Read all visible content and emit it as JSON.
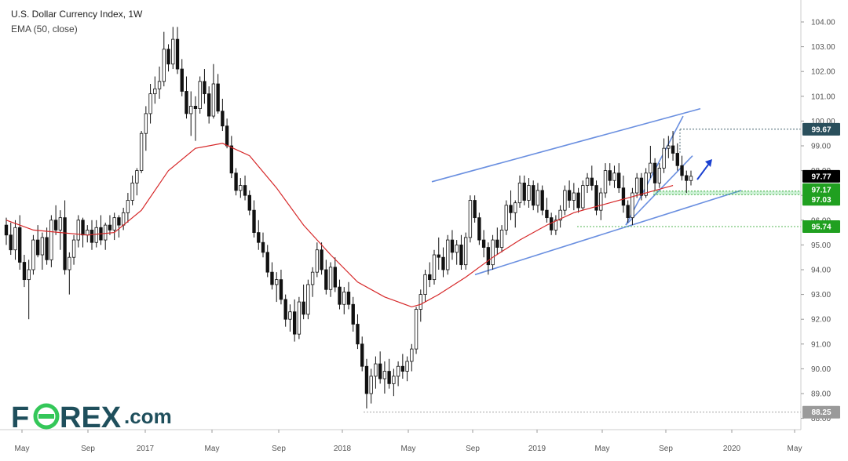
{
  "chart_data": {
    "type": "candlestick",
    "title": "U.S. Dollar Currency Index, 1W",
    "indicator": "EMA (50, close)",
    "ylim": [
      87.6,
      104.5
    ],
    "y_ticks": [
      88,
      89,
      90,
      91,
      92,
      93,
      94,
      95,
      96,
      97,
      98,
      99,
      100,
      101,
      102,
      103,
      104
    ],
    "x_ticks": [
      "May",
      "Sep",
      "2017",
      "May",
      "Sep",
      "2018",
      "May",
      "Sep",
      "2019",
      "May",
      "Sep",
      "2020",
      "May"
    ],
    "ohlc_weekly": [
      [
        95.8,
        96.1,
        95.0,
        95.4
      ],
      [
        95.4,
        95.9,
        94.6,
        94.8
      ],
      [
        94.8,
        96.0,
        94.4,
        95.7
      ],
      [
        95.7,
        96.2,
        94.0,
        94.3
      ],
      [
        94.3,
        94.6,
        93.3,
        93.6
      ],
      [
        93.6,
        94.4,
        92.0,
        94.0
      ],
      [
        94.0,
        95.4,
        93.8,
        95.2
      ],
      [
        95.2,
        95.8,
        94.5,
        94.6
      ],
      [
        94.6,
        95.5,
        94.0,
        95.3
      ],
      [
        95.3,
        95.7,
        94.2,
        94.4
      ],
      [
        94.4,
        96.2,
        94.1,
        96.0
      ],
      [
        96.0,
        96.6,
        95.4,
        95.6
      ],
      [
        95.6,
        96.4,
        94.8,
        96.1
      ],
      [
        96.1,
        96.8,
        93.8,
        94.0
      ],
      [
        94.0,
        94.7,
        93.0,
        94.5
      ],
      [
        94.5,
        95.4,
        94.2,
        95.2
      ],
      [
        95.2,
        96.2,
        94.9,
        96.0
      ],
      [
        96.0,
        96.1,
        94.9,
        95.4
      ],
      [
        95.4,
        95.8,
        95.1,
        95.6
      ],
      [
        95.6,
        96.0,
        94.8,
        95.1
      ],
      [
        95.1,
        96.0,
        94.9,
        95.7
      ],
      [
        95.7,
        96.2,
        95.0,
        95.2
      ],
      [
        95.2,
        95.9,
        94.8,
        95.8
      ],
      [
        95.8,
        96.2,
        95.4,
        95.6
      ],
      [
        95.6,
        96.3,
        95.2,
        96.1
      ],
      [
        96.1,
        96.2,
        95.3,
        95.8
      ],
      [
        95.8,
        96.5,
        95.6,
        96.3
      ],
      [
        96.3,
        97.1,
        95.9,
        96.8
      ],
      [
        96.8,
        97.8,
        96.6,
        97.5
      ],
      [
        97.5,
        98.1,
        97.0,
        98.0
      ],
      [
        98.0,
        99.6,
        97.9,
        99.5
      ],
      [
        99.5,
        100.6,
        98.8,
        100.3
      ],
      [
        100.3,
        101.5,
        99.9,
        101.1
      ],
      [
        101.1,
        101.8,
        100.7,
        101.3
      ],
      [
        101.3,
        102.2,
        100.9,
        101.6
      ],
      [
        101.6,
        103.6,
        101.4,
        102.9
      ],
      [
        102.9,
        103.1,
        102.0,
        102.3
      ],
      [
        102.3,
        103.8,
        102.1,
        103.3
      ],
      [
        103.3,
        103.8,
        101.9,
        102.1
      ],
      [
        102.1,
        102.5,
        101.0,
        101.2
      ],
      [
        101.2,
        101.8,
        100.1,
        100.3
      ],
      [
        100.3,
        101.2,
        99.4,
        100.6
      ],
      [
        100.6,
        101.0,
        99.2,
        100.5
      ],
      [
        100.5,
        101.8,
        100.3,
        101.6
      ],
      [
        101.6,
        102.1,
        100.7,
        101.1
      ],
      [
        101.1,
        101.4,
        99.9,
        100.2
      ],
      [
        100.2,
        102.3,
        100.1,
        101.5
      ],
      [
        101.5,
        101.9,
        100.3,
        100.4
      ],
      [
        100.4,
        100.9,
        99.6,
        99.8
      ],
      [
        99.8,
        100.1,
        98.9,
        99.0
      ],
      [
        99.0,
        99.4,
        97.7,
        97.9
      ],
      [
        97.9,
        98.1,
        97.0,
        97.2
      ],
      [
        97.2,
        97.7,
        96.9,
        97.4
      ],
      [
        97.4,
        97.8,
        96.8,
        97.0
      ],
      [
        97.0,
        97.2,
        96.2,
        96.4
      ],
      [
        96.4,
        96.8,
        95.3,
        95.5
      ],
      [
        95.5,
        96.0,
        94.8,
        95.1
      ],
      [
        95.1,
        95.5,
        94.5,
        94.7
      ],
      [
        94.7,
        95.0,
        93.7,
        93.9
      ],
      [
        93.9,
        94.3,
        93.2,
        93.4
      ],
      [
        93.4,
        93.9,
        92.7,
        93.6
      ],
      [
        93.6,
        94.0,
        92.6,
        92.8
      ],
      [
        92.8,
        93.0,
        91.7,
        92.0
      ],
      [
        92.0,
        92.6,
        91.5,
        92.3
      ],
      [
        92.3,
        92.8,
        91.1,
        91.4
      ],
      [
        91.4,
        92.9,
        91.2,
        92.7
      ],
      [
        92.7,
        93.4,
        92.0,
        92.2
      ],
      [
        92.2,
        93.6,
        92.0,
        93.4
      ],
      [
        93.4,
        94.1,
        92.9,
        93.9
      ],
      [
        93.9,
        95.1,
        93.7,
        94.8
      ],
      [
        94.8,
        95.1,
        93.8,
        94.0
      ],
      [
        94.0,
        94.4,
        93.0,
        93.2
      ],
      [
        93.2,
        94.3,
        92.9,
        94.1
      ],
      [
        94.1,
        94.5,
        93.1,
        93.3
      ],
      [
        93.3,
        93.6,
        92.4,
        92.6
      ],
      [
        92.6,
        93.3,
        92.2,
        93.1
      ],
      [
        93.1,
        93.5,
        92.4,
        92.6
      ],
      [
        92.6,
        92.9,
        91.5,
        91.8
      ],
      [
        91.8,
        92.2,
        90.8,
        91.0
      ],
      [
        91.0,
        91.3,
        89.9,
        90.1
      ],
      [
        90.1,
        90.4,
        88.4,
        89.0
      ],
      [
        89.0,
        90.0,
        88.6,
        89.7
      ],
      [
        89.7,
        90.5,
        89.2,
        90.2
      ],
      [
        90.2,
        90.7,
        89.4,
        89.6
      ],
      [
        89.6,
        90.3,
        89.0,
        89.9
      ],
      [
        89.9,
        90.4,
        89.2,
        89.4
      ],
      [
        89.4,
        90.0,
        88.9,
        89.7
      ],
      [
        89.7,
        90.3,
        89.3,
        90.1
      ],
      [
        90.1,
        90.6,
        89.6,
        89.9
      ],
      [
        89.9,
        90.5,
        89.5,
        90.3
      ],
      [
        90.3,
        91.0,
        89.9,
        90.8
      ],
      [
        90.8,
        92.5,
        90.6,
        92.4
      ],
      [
        92.4,
        93.2,
        91.9,
        93.0
      ],
      [
        93.0,
        94.0,
        92.7,
        93.8
      ],
      [
        93.8,
        94.3,
        93.3,
        93.6
      ],
      [
        93.6,
        94.8,
        93.4,
        94.6
      ],
      [
        94.6,
        95.3,
        94.0,
        94.5
      ],
      [
        94.5,
        94.9,
        93.7,
        94.0
      ],
      [
        94.0,
        95.4,
        93.8,
        95.2
      ],
      [
        95.2,
        95.6,
        94.4,
        94.7
      ],
      [
        94.7,
        95.2,
        94.2,
        95.0
      ],
      [
        95.0,
        95.4,
        94.0,
        94.2
      ],
      [
        94.2,
        95.5,
        94.0,
        95.3
      ],
      [
        95.3,
        97.0,
        95.1,
        96.8
      ],
      [
        96.8,
        97.0,
        95.9,
        96.1
      ],
      [
        96.1,
        96.3,
        95.0,
        95.2
      ],
      [
        95.2,
        95.6,
        94.5,
        94.9
      ],
      [
        94.9,
        95.1,
        93.8,
        94.2
      ],
      [
        94.2,
        95.4,
        94.0,
        95.2
      ],
      [
        95.2,
        95.7,
        94.6,
        94.9
      ],
      [
        94.9,
        95.8,
        94.7,
        95.6
      ],
      [
        95.6,
        96.8,
        95.4,
        96.6
      ],
      [
        96.6,
        97.2,
        96.0,
        96.3
      ],
      [
        96.3,
        96.8,
        95.7,
        96.7
      ],
      [
        96.7,
        97.8,
        96.5,
        97.5
      ],
      [
        97.5,
        97.8,
        96.6,
        96.8
      ],
      [
        96.8,
        97.7,
        96.5,
        97.4
      ],
      [
        97.4,
        97.6,
        96.4,
        96.6
      ],
      [
        96.6,
        97.5,
        96.3,
        97.2
      ],
      [
        97.2,
        97.4,
        96.2,
        96.4
      ],
      [
        96.4,
        96.9,
        95.9,
        96.1
      ],
      [
        96.1,
        96.3,
        95.4,
        95.6
      ],
      [
        95.6,
        96.2,
        95.4,
        96.0
      ],
      [
        96.0,
        96.6,
        95.7,
        96.4
      ],
      [
        96.4,
        97.4,
        96.2,
        97.2
      ],
      [
        97.2,
        97.6,
        96.5,
        96.8
      ],
      [
        96.8,
        97.5,
        96.4,
        97.1
      ],
      [
        97.1,
        97.3,
        96.3,
        96.5
      ],
      [
        96.5,
        97.6,
        96.4,
        97.4
      ],
      [
        97.4,
        97.9,
        97.1,
        97.7
      ],
      [
        97.7,
        98.2,
        97.2,
        97.4
      ],
      [
        97.4,
        97.6,
        96.2,
        96.4
      ],
      [
        96.4,
        97.3,
        96.0,
        97.1
      ],
      [
        97.1,
        98.3,
        96.9,
        98.0
      ],
      [
        98.0,
        98.3,
        97.4,
        97.6
      ],
      [
        97.6,
        98.2,
        97.3,
        97.9
      ],
      [
        97.9,
        98.3,
        97.1,
        97.3
      ],
      [
        97.3,
        97.8,
        96.3,
        96.6
      ],
      [
        96.6,
        96.8,
        95.9,
        96.1
      ],
      [
        96.1,
        97.3,
        95.8,
        97.1
      ],
      [
        97.1,
        97.9,
        96.9,
        97.7
      ],
      [
        97.7,
        97.9,
        96.8,
        97.0
      ],
      [
        97.0,
        98.1,
        96.9,
        97.9
      ],
      [
        97.9,
        99.0,
        97.7,
        98.3
      ],
      [
        98.3,
        98.5,
        97.2,
        97.5
      ],
      [
        97.5,
        98.3,
        97.3,
        98.1
      ],
      [
        98.1,
        99.3,
        97.9,
        98.9
      ],
      [
        98.9,
        99.4,
        98.5,
        99.0
      ],
      [
        99.0,
        99.6,
        98.4,
        98.7
      ],
      [
        98.7,
        99.1,
        98.0,
        98.2
      ],
      [
        98.2,
        98.6,
        97.6,
        97.8
      ],
      [
        97.8,
        98.0,
        97.1,
        97.6
      ],
      [
        97.6,
        98.0,
        97.4,
        97.77
      ]
    ],
    "ema_50": {
      "x_idx": [
        0,
        6,
        12,
        18,
        24,
        30,
        36,
        42,
        48,
        54,
        60,
        66,
        72,
        78,
        84,
        90,
        92,
        96,
        102,
        108,
        114,
        120,
        126,
        132,
        138,
        144,
        148
      ],
      "values": [
        96.0,
        95.6,
        95.5,
        95.4,
        95.5,
        96.4,
        98.0,
        98.9,
        99.1,
        98.6,
        97.3,
        95.8,
        94.6,
        93.5,
        92.9,
        92.5,
        92.6,
        93.0,
        93.7,
        94.5,
        95.2,
        95.8,
        96.3,
        96.6,
        96.9,
        97.2,
        97.4
      ]
    },
    "levels": [
      {
        "value": 99.67,
        "label": "99.67",
        "color": "#2a4f5c"
      },
      {
        "value": 97.77,
        "label": "97.77",
        "color": "#000000"
      },
      {
        "value": 97.17,
        "label": "97.17",
        "color": "#20a020"
      },
      {
        "value": 97.03,
        "label": "97.03",
        "color": "#20a020"
      },
      {
        "value": 95.74,
        "label": "95.74",
        "color": "#20a020"
      },
      {
        "value": 88.25,
        "label": "88.25",
        "color": "#9a9a9a"
      }
    ],
    "colors": {
      "ema": "#d62728",
      "trendline": "#6a8fe0",
      "arrow": "#1a40d0",
      "candle": "#111111"
    }
  },
  "logo": {
    "text_f": "F",
    "text_rex": "REX",
    "text_com": ".com",
    "color_main": "#1f4f5c",
    "color_accent": "#34c759"
  }
}
